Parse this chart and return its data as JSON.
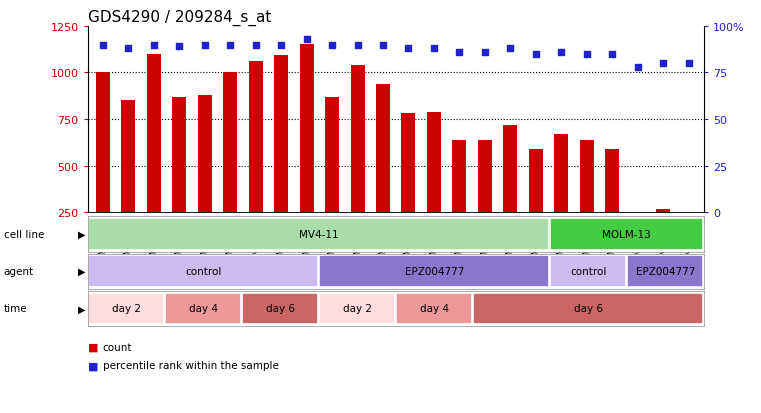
{
  "title": "GDS4290 / 209284_s_at",
  "samples": [
    "GSM739151",
    "GSM739152",
    "GSM739153",
    "GSM739157",
    "GSM739158",
    "GSM739159",
    "GSM739163",
    "GSM739164",
    "GSM739165",
    "GSM739148",
    "GSM739149",
    "GSM739150",
    "GSM739154",
    "GSM739155",
    "GSM739156",
    "GSM739160",
    "GSM739161",
    "GSM739162",
    "GSM739169",
    "GSM739170",
    "GSM739171",
    "GSM739166",
    "GSM739167",
    "GSM739168"
  ],
  "counts": [
    1000,
    850,
    1100,
    870,
    880,
    1000,
    1060,
    1095,
    1155,
    870,
    1040,
    940,
    780,
    790,
    640,
    640,
    720,
    590,
    670,
    640,
    590,
    235,
    265,
    240
  ],
  "percentile_ranks": [
    90,
    88,
    90,
    89,
    90,
    90,
    90,
    90,
    93,
    90,
    90,
    90,
    88,
    88,
    86,
    86,
    88,
    85,
    86,
    85,
    85,
    78,
    80,
    80
  ],
  "bar_color": "#cc0000",
  "dot_color": "#2222cc",
  "ylim_left": [
    250,
    1250
  ],
  "ylim_right": [
    0,
    100
  ],
  "yticks_left": [
    250,
    500,
    750,
    1000,
    1250
  ],
  "yticks_right": [
    0,
    25,
    50,
    75,
    100
  ],
  "grid_values": [
    500,
    750,
    1000
  ],
  "cell_line_groups": [
    {
      "label": "MV4-11",
      "start": 0,
      "end": 18,
      "color": "#aaddaa"
    },
    {
      "label": "MOLM-13",
      "start": 18,
      "end": 24,
      "color": "#44cc44"
    }
  ],
  "agent_groups": [
    {
      "label": "control",
      "start": 0,
      "end": 9,
      "color": "#ccbbee"
    },
    {
      "label": "EPZ004777",
      "start": 9,
      "end": 18,
      "color": "#8877cc"
    },
    {
      "label": "control",
      "start": 18,
      "end": 21,
      "color": "#ccbbee"
    },
    {
      "label": "EPZ004777",
      "start": 21,
      "end": 24,
      "color": "#8877cc"
    }
  ],
  "time_groups": [
    {
      "label": "day 2",
      "start": 0,
      "end": 3,
      "color": "#ffdddd"
    },
    {
      "label": "day 4",
      "start": 3,
      "end": 6,
      "color": "#ee9999"
    },
    {
      "label": "day 6",
      "start": 6,
      "end": 9,
      "color": "#cc6666"
    },
    {
      "label": "day 2",
      "start": 9,
      "end": 12,
      "color": "#ffdddd"
    },
    {
      "label": "day 4",
      "start": 12,
      "end": 15,
      "color": "#ee9999"
    },
    {
      "label": "day 6",
      "start": 15,
      "end": 24,
      "color": "#cc6666"
    }
  ],
  "row_labels": [
    "cell line",
    "agent",
    "time"
  ],
  "background_color": "#ffffff",
  "title_fontsize": 11,
  "bar_width": 0.55
}
